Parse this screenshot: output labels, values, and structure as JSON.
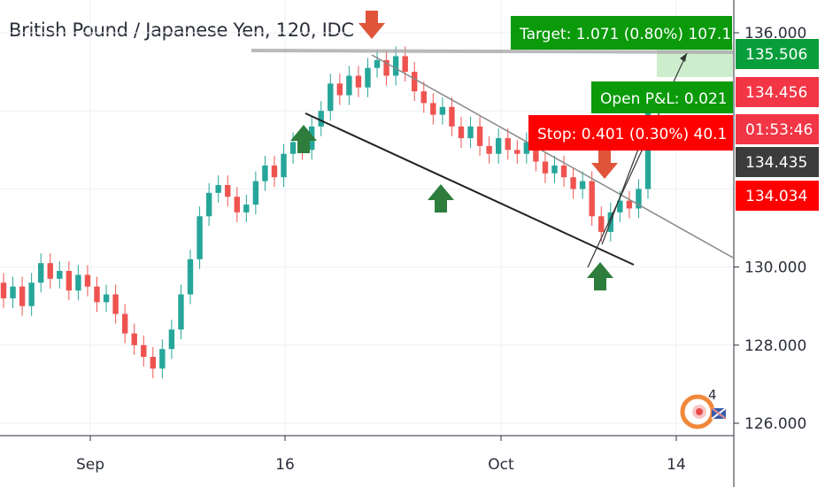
{
  "chart_data": {
    "type": "candlestick",
    "title": "British Pound / Japanese Yen, 120, IDC",
    "y_axis": {
      "ylim": [
        125.5,
        136.6
      ],
      "ticks": [
        "126.000",
        "128.000",
        "130.000",
        "136.000"
      ]
    },
    "x_axis": {
      "tick_labels": [
        "Sep",
        "16",
        "Oct",
        "14"
      ]
    },
    "grid": true,
    "price_line_values": [
      135.506,
      134.456,
      134.435,
      134.034
    ],
    "series": [
      {
        "values": [
          [
            129.6,
            129.2
          ],
          [
            129.2,
            129.5
          ],
          [
            129.5,
            129.0
          ],
          [
            129.0,
            129.6
          ],
          [
            129.6,
            130.1
          ],
          [
            130.1,
            129.7
          ],
          [
            129.7,
            129.9
          ],
          [
            129.9,
            129.4
          ],
          [
            129.4,
            129.8
          ],
          [
            129.8,
            129.5
          ],
          [
            129.5,
            129.1
          ],
          [
            129.1,
            129.3
          ],
          [
            129.3,
            128.8
          ],
          [
            128.8,
            128.3
          ],
          [
            128.3,
            128.0
          ],
          [
            128.0,
            127.7
          ],
          [
            127.7,
            127.4
          ],
          [
            127.4,
            127.9
          ],
          [
            127.9,
            128.4
          ],
          [
            128.4,
            129.3
          ],
          [
            129.3,
            130.2
          ],
          [
            130.2,
            131.3
          ],
          [
            131.3,
            131.9
          ],
          [
            131.9,
            132.1
          ],
          [
            132.1,
            131.8
          ],
          [
            131.8,
            131.4
          ],
          [
            131.4,
            131.6
          ],
          [
            131.6,
            132.2
          ],
          [
            132.2,
            132.6
          ],
          [
            132.6,
            132.3
          ],
          [
            132.3,
            132.9
          ],
          [
            132.9,
            133.2
          ],
          [
            133.2,
            133.0
          ],
          [
            133.0,
            133.6
          ],
          [
            133.6,
            134.0
          ],
          [
            134.0,
            134.7
          ],
          [
            134.7,
            134.4
          ],
          [
            134.4,
            134.9
          ],
          [
            134.9,
            134.6
          ],
          [
            134.6,
            135.1
          ],
          [
            135.1,
            135.3
          ],
          [
            135.3,
            134.9
          ],
          [
            134.9,
            135.4
          ],
          [
            135.4,
            135.0
          ],
          [
            135.0,
            134.5
          ],
          [
            134.5,
            134.2
          ],
          [
            134.2,
            133.9
          ],
          [
            133.9,
            134.1
          ],
          [
            134.1,
            133.6
          ],
          [
            133.6,
            133.3
          ],
          [
            133.3,
            133.6
          ],
          [
            133.6,
            133.1
          ],
          [
            133.1,
            132.9
          ],
          [
            132.9,
            133.3
          ],
          [
            133.3,
            133.0
          ],
          [
            133.0,
            132.9
          ],
          [
            132.9,
            133.2
          ],
          [
            133.2,
            132.7
          ],
          [
            132.7,
            132.4
          ],
          [
            132.4,
            132.6
          ],
          [
            132.6,
            132.3
          ],
          [
            132.3,
            132.0
          ],
          [
            132.0,
            132.2
          ],
          [
            132.2,
            131.3
          ],
          [
            131.3,
            130.9
          ],
          [
            130.9,
            131.4
          ],
          [
            131.4,
            131.7
          ],
          [
            131.7,
            131.5
          ],
          [
            131.5,
            132.0
          ],
          [
            132.0,
            134.4
          ]
        ]
      }
    ],
    "annotations": {
      "target_label": "Target: 1.071 (0.80%) 107.1",
      "open_pl_label": "Open P&L: 0.021",
      "stop_label": "Stop: 0.401 (0.30%) 40.1",
      "countdown": "01:53:46",
      "arrows": [
        {
          "direction": "down",
          "color": "#e0553a"
        },
        {
          "direction": "up",
          "color": "#2e7d3c"
        },
        {
          "direction": "up",
          "color": "#2e7d3c"
        },
        {
          "direction": "down",
          "color": "#e0553a"
        },
        {
          "direction": "up",
          "color": "#2e7d3c"
        }
      ]
    }
  },
  "price_tags": [
    {
      "value": "135.506",
      "color": "#089e3c"
    },
    {
      "value": "134.456",
      "color": "#f23645"
    },
    {
      "value": "01:53:46",
      "color": "#f23645"
    },
    {
      "value": "134.435",
      "color": "#3c3c3c"
    },
    {
      "value": "134.034",
      "color": "#ff0000"
    }
  ],
  "colors": {
    "up": "#26a69a",
    "down": "#ef5350",
    "target": "#0a9a0a",
    "stop": "#ff0000"
  },
  "watermark": {
    "text": "4",
    "icon": "brand-logo-icon"
  }
}
